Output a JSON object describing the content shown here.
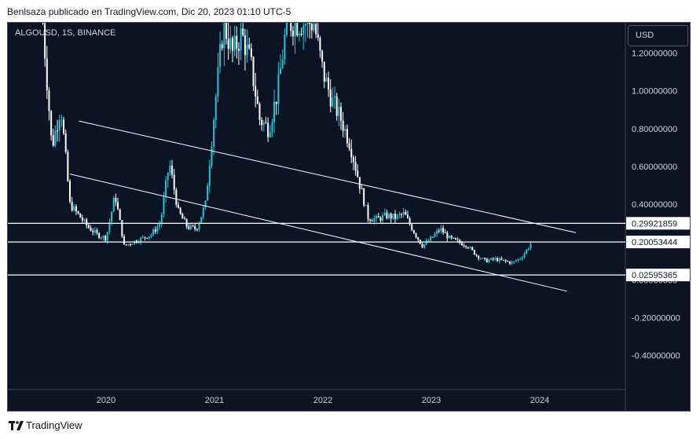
{
  "header": {
    "attribution": "Benlsaza publicado en TradingView.com, Dic 20, 2023 01:10 UTC-5"
  },
  "chart": {
    "symbol_label": "ALGOUSD, 1S, BINANCE",
    "currency_button": "USD"
  },
  "footer": {
    "brand": "TradingView"
  },
  "colors": {
    "background": "#0c1324",
    "candle_up": "#22c5d9",
    "candle_down": "#ffffff",
    "line": "#ffffff",
    "axis_text": "#d1d4dc",
    "grid": "#1b2236"
  },
  "chart_data": {
    "type": "candlestick",
    "title": "ALGOUSD, 1S, BINANCE",
    "xlabel": "",
    "ylabel": "USD",
    "ylim": [
      -0.58,
      1.36
    ],
    "x_ticks": [
      "2020",
      "2021",
      "2022",
      "2023",
      "2024"
    ],
    "y_ticks": [
      "1.20000000",
      "1.00000000",
      "0.80000000",
      "0.60000000",
      "0.40000000",
      "0.00000000",
      "-0.20000000",
      "-0.40000000"
    ],
    "price_levels": [
      {
        "label": "0.29921859",
        "value": 0.29921859
      },
      {
        "label": "0.20053444",
        "value": 0.20053444
      },
      {
        "label": "0.02595365",
        "value": 0.02595365
      }
    ],
    "trendlines": [
      {
        "name": "upper channel",
        "start": [
          "2019-10",
          0.84
        ],
        "end": [
          "2024-05",
          0.25
        ]
      },
      {
        "name": "lower channel",
        "start": [
          "2019-09",
          0.56
        ],
        "end": [
          "2024-04",
          -0.06
        ]
      }
    ],
    "price_path": [
      [
        "2019-06",
        1.36
      ],
      [
        "2019-07",
        0.7
      ],
      [
        "2019-08",
        0.92
      ],
      [
        "2019-09",
        0.4
      ],
      [
        "2019-11",
        0.28
      ],
      [
        "2019-12",
        0.24
      ],
      [
        "2020-01",
        0.22
      ],
      [
        "2020-02",
        0.45
      ],
      [
        "2020-03",
        0.18
      ],
      [
        "2020-04",
        0.2
      ],
      [
        "2020-05",
        0.22
      ],
      [
        "2020-06",
        0.24
      ],
      [
        "2020-07",
        0.3
      ],
      [
        "2020-08",
        0.62
      ],
      [
        "2020-09",
        0.36
      ],
      [
        "2020-10",
        0.28
      ],
      [
        "2020-11",
        0.27
      ],
      [
        "2020-12",
        0.4
      ],
      [
        "2021-01",
        0.9
      ],
      [
        "2021-02",
        1.36
      ],
      [
        "2021-03",
        1.2
      ],
      [
        "2021-04",
        1.3
      ],
      [
        "2021-05",
        1.15
      ],
      [
        "2021-06",
        0.85
      ],
      [
        "2021-07",
        0.8
      ],
      [
        "2021-08",
        1.0
      ],
      [
        "2021-09",
        1.36
      ],
      [
        "2021-10",
        1.36
      ],
      [
        "2021-11",
        1.36
      ],
      [
        "2021-12",
        1.36
      ],
      [
        "2022-01",
        1.1
      ],
      [
        "2022-02",
        0.95
      ],
      [
        "2022-03",
        0.85
      ],
      [
        "2022-04",
        0.72
      ],
      [
        "2022-05",
        0.52
      ],
      [
        "2022-06",
        0.33
      ],
      [
        "2022-07",
        0.32
      ],
      [
        "2022-08",
        0.34
      ],
      [
        "2022-09",
        0.33
      ],
      [
        "2022-10",
        0.35
      ],
      [
        "2022-11",
        0.26
      ],
      [
        "2022-12",
        0.18
      ],
      [
        "2023-01",
        0.22
      ],
      [
        "2023-02",
        0.27
      ],
      [
        "2023-03",
        0.22
      ],
      [
        "2023-04",
        0.2
      ],
      [
        "2023-05",
        0.18
      ],
      [
        "2023-06",
        0.13
      ],
      [
        "2023-07",
        0.1
      ],
      [
        "2023-08",
        0.11
      ],
      [
        "2023-09",
        0.1
      ],
      [
        "2023-10",
        0.09
      ],
      [
        "2023-11",
        0.12
      ],
      [
        "2023-12",
        0.19
      ]
    ]
  }
}
